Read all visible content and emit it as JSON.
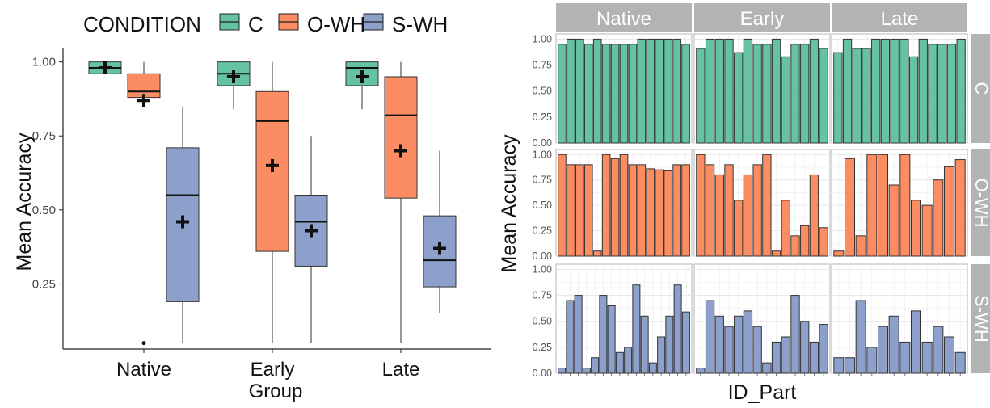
{
  "colors": {
    "C": "#66c2a5",
    "O-WH": "#fc8d62",
    "S-WH": "#8da0cb",
    "strip": "#b3b3b3",
    "panel_grid": "#e6e6e6"
  },
  "chart_data": [
    {
      "type": "box",
      "legend": {
        "title": "CONDITION",
        "entries": [
          "C",
          "O-WH",
          "S-WH"
        ],
        "placement": "top"
      },
      "xlabel": "Group",
      "ylabel": "Mean Accuracy",
      "categories": [
        "Native",
        "Early",
        "Late"
      ],
      "yticks": [
        "0.25",
        "0.50",
        "0.75",
        "1.00"
      ],
      "ylim": [
        0.03,
        1.04
      ],
      "grid": false,
      "boxes": [
        {
          "group": "Native",
          "condition": "C",
          "min": 0.96,
          "q1": 0.96,
          "median": 0.98,
          "q3": 1.0,
          "max": 1.0,
          "mean": 0.98,
          "outliers": []
        },
        {
          "group": "Native",
          "condition": "O-WH",
          "min": 0.88,
          "q1": 0.88,
          "median": 0.9,
          "q3": 0.96,
          "max": 1.0,
          "mean": 0.87,
          "outliers": [
            0.05
          ]
        },
        {
          "group": "Native",
          "condition": "S-WH",
          "min": 0.05,
          "q1": 0.19,
          "median": 0.55,
          "q3": 0.71,
          "max": 0.85,
          "mean": 0.46,
          "outliers": []
        },
        {
          "group": "Early",
          "condition": "C",
          "min": 0.84,
          "q1": 0.92,
          "median": 0.96,
          "q3": 1.0,
          "max": 1.0,
          "mean": 0.95,
          "outliers": []
        },
        {
          "group": "Early",
          "condition": "O-WH",
          "min": 0.05,
          "q1": 0.36,
          "median": 0.8,
          "q3": 0.9,
          "max": 1.0,
          "mean": 0.65,
          "outliers": []
        },
        {
          "group": "Early",
          "condition": "S-WH",
          "min": 0.05,
          "q1": 0.31,
          "median": 0.46,
          "q3": 0.55,
          "max": 0.75,
          "mean": 0.43,
          "outliers": []
        },
        {
          "group": "Late",
          "condition": "C",
          "min": 0.84,
          "q1": 0.92,
          "median": 0.98,
          "q3": 1.0,
          "max": 1.0,
          "mean": 0.95,
          "outliers": []
        },
        {
          "group": "Late",
          "condition": "O-WH",
          "min": 0.05,
          "q1": 0.54,
          "median": 0.82,
          "q3": 0.95,
          "max": 1.0,
          "mean": 0.7,
          "outliers": []
        },
        {
          "group": "Late",
          "condition": "S-WH",
          "min": 0.15,
          "q1": 0.24,
          "median": 0.33,
          "q3": 0.48,
          "max": 0.7,
          "mean": 0.37,
          "outliers": []
        }
      ]
    },
    {
      "type": "bar",
      "facet_columns": [
        "Native",
        "Early",
        "Late"
      ],
      "facet_rows": [
        "C",
        "O-WH",
        "S-WH"
      ],
      "xlabel": "ID_Part",
      "ylabel": "Mean Accuracy",
      "yticks": [
        "0.00",
        "0.25",
        "0.50",
        "0.75",
        "1.00"
      ],
      "ylim": [
        0,
        1.05
      ],
      "grid": true,
      "values": {
        "C": {
          "Native": [
            0.95,
            1.0,
            1.0,
            0.95,
            1.0,
            0.95,
            0.95,
            0.95,
            0.95,
            1.0,
            1.0,
            1.0,
            1.0,
            1.0,
            0.95
          ],
          "Early": [
            0.91,
            1.0,
            1.0,
            1.0,
            0.87,
            1.0,
            0.95,
            0.95,
            1.0,
            0.83,
            0.95,
            0.95,
            1.0,
            0.91
          ],
          "Late": [
            0.87,
            1.0,
            0.91,
            0.91,
            1.0,
            1.0,
            1.0,
            1.0,
            0.83,
            1.0,
            0.95,
            0.95,
            0.95,
            1.0
          ]
        },
        "O-WH": {
          "Native": [
            1.0,
            0.9,
            0.9,
            0.9,
            0.05,
            1.0,
            0.96,
            1.0,
            0.9,
            0.9,
            0.86,
            0.85,
            0.84,
            0.9,
            0.9
          ],
          "Early": [
            1.0,
            0.9,
            0.8,
            0.9,
            0.55,
            0.8,
            0.9,
            1.0,
            0.05,
            0.55,
            0.2,
            0.3,
            0.8,
            0.28
          ],
          "Late": [
            0.05,
            0.96,
            0.2,
            1.0,
            1.0,
            0.7,
            1.0,
            0.55,
            0.5,
            0.75,
            0.88,
            0.95
          ]
        },
        "S-WH": {
          "Native": [
            0.05,
            0.7,
            0.75,
            0.05,
            0.15,
            0.75,
            0.65,
            0.2,
            0.25,
            0.85,
            0.55,
            0.1,
            0.35,
            0.55,
            0.85,
            0.59
          ],
          "Early": [
            0.05,
            0.7,
            0.55,
            0.45,
            0.55,
            0.6,
            0.45,
            0.1,
            0.3,
            0.35,
            0.75,
            0.5,
            0.3,
            0.47
          ],
          "Late": [
            0.15,
            0.15,
            0.7,
            0.25,
            0.45,
            0.55,
            0.3,
            0.6,
            0.3,
            0.45,
            0.35,
            0.2
          ]
        }
      }
    }
  ]
}
